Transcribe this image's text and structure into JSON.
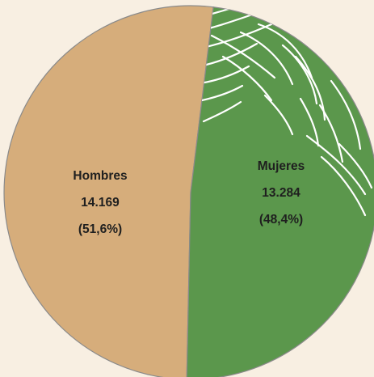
{
  "chart_data": {
    "type": "pie",
    "slices": [
      {
        "label": "Hombres",
        "value": 14169,
        "value_text": "14.169",
        "percent_text": "(51,6%)",
        "percent": 51.6,
        "color": "#d6ad7b"
      },
      {
        "label": "Mujeres",
        "value": 13284,
        "value_text": "13.284",
        "percent_text": "(48,4%)",
        "percent": 48.4,
        "color": "#5b974c"
      }
    ],
    "background": "#f8efe2",
    "pattern_color": "#ffffff"
  }
}
